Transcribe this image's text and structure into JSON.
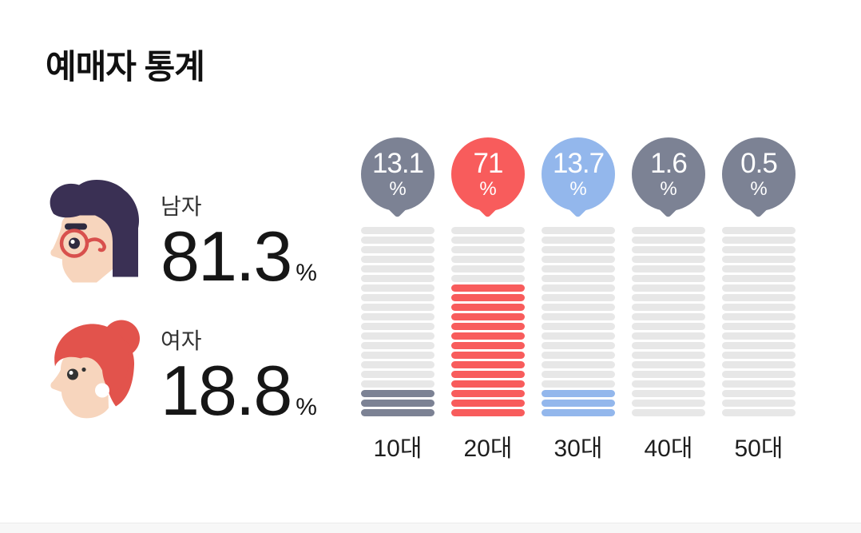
{
  "section": {
    "title": "예매자 통계"
  },
  "gender_stats": {
    "male": {
      "label": "남자",
      "value": "81.3",
      "unit": "%"
    },
    "female": {
      "label": "여자",
      "value": "18.8",
      "unit": "%"
    }
  },
  "chart_data": {
    "type": "bar",
    "title": "",
    "categories": [
      "10대",
      "20대",
      "30대",
      "40대",
      "50대"
    ],
    "values": [
      13.1,
      71,
      13.7,
      1.6,
      0.5
    ],
    "value_labels": [
      "13.1",
      "71",
      "13.7",
      "1.6",
      "0.5"
    ],
    "unit": "%",
    "colors": [
      "#7C8294",
      "#F85C5C",
      "#93B7EC",
      "#7C8294",
      "#7C8294"
    ],
    "track_color": "#E7E7E7",
    "total_segments": 20,
    "filled_segments": [
      3,
      14,
      3,
      0,
      0
    ],
    "ylim": [
      0,
      100
    ],
    "orientation": "vertical-segmented",
    "legend": "none",
    "grid": false
  },
  "theme": {
    "accent_red": "#F85C5C",
    "accent_gray": "#7C8294",
    "accent_blue": "#93B7EC",
    "track_gray": "#E7E7E7"
  }
}
